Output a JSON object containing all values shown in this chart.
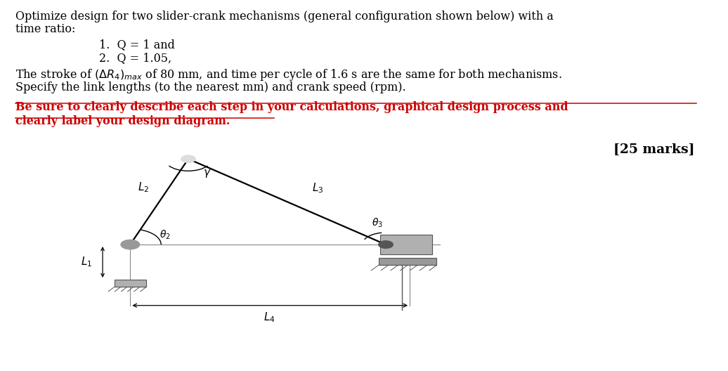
{
  "title_line1": "Optimize design for two slider-crank mechanisms (general configuration shown below) with a",
  "title_line2": "time ratio:",
  "list_item1": "1.  Q = 1 and",
  "list_item2": "2.  Q = 1.05,",
  "body_text2": "Specify the link lengths (to the nearest mm) and crank speed (rpm).",
  "emphasis_line1": "Be sure to clearly describe each step in your calculations, graphical design process and",
  "emphasis_line2": "clearly label your design diagram.",
  "marks_text": "[25 marks]",
  "bg_color": "#ffffff",
  "text_color": "#000000",
  "emphasis_color": "#cc0000",
  "font_size_body": 11.5,
  "font_size_marks": 13.5
}
